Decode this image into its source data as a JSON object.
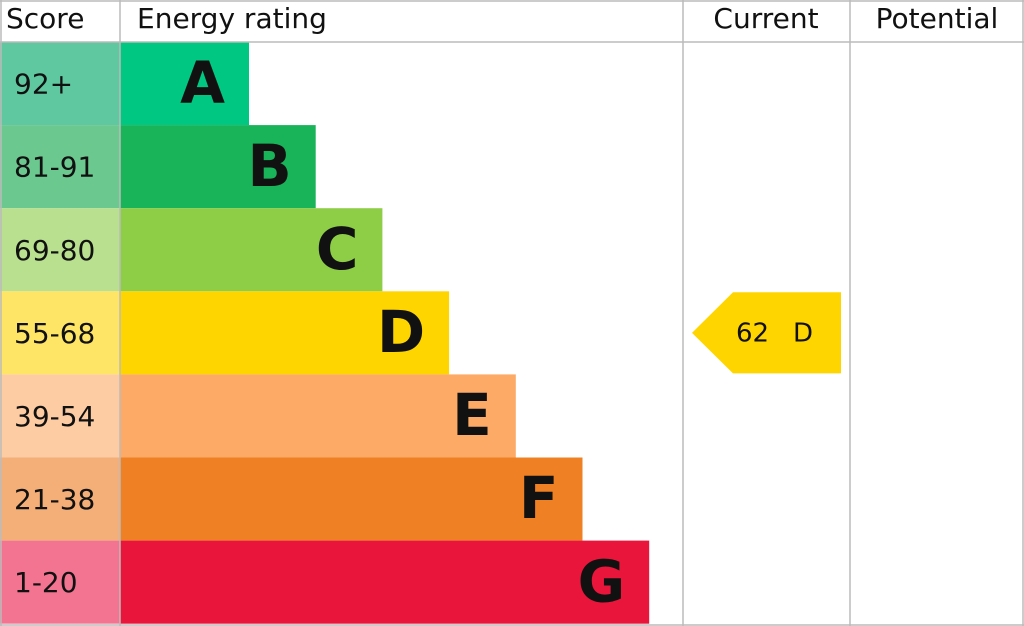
{
  "header": {
    "score": "Score",
    "rating": "Energy rating",
    "current": "Current",
    "potential": "Potential"
  },
  "bands": [
    {
      "range": "92+",
      "letter": "A",
      "color": "#00c781",
      "score_color": "#5fc8a0"
    },
    {
      "range": "81-91",
      "letter": "B",
      "color": "#19b459",
      "score_color": "#6bc88f"
    },
    {
      "range": "69-80",
      "letter": "C",
      "color": "#8dce46",
      "score_color": "#b8e08e"
    },
    {
      "range": "55-68",
      "letter": "D",
      "color": "#ffd500",
      "score_color": "#ffe566"
    },
    {
      "range": "39-54",
      "letter": "E",
      "color": "#fcaa65",
      "score_color": "#fdcca3"
    },
    {
      "range": "21-38",
      "letter": "F",
      "color": "#ef8023",
      "score_color": "#f4ae78"
    },
    {
      "range": "1-20",
      "letter": "G",
      "color": "#e9153b",
      "score_color": "#f27490"
    }
  ],
  "current": {
    "score": 62,
    "rating": "D"
  }
}
